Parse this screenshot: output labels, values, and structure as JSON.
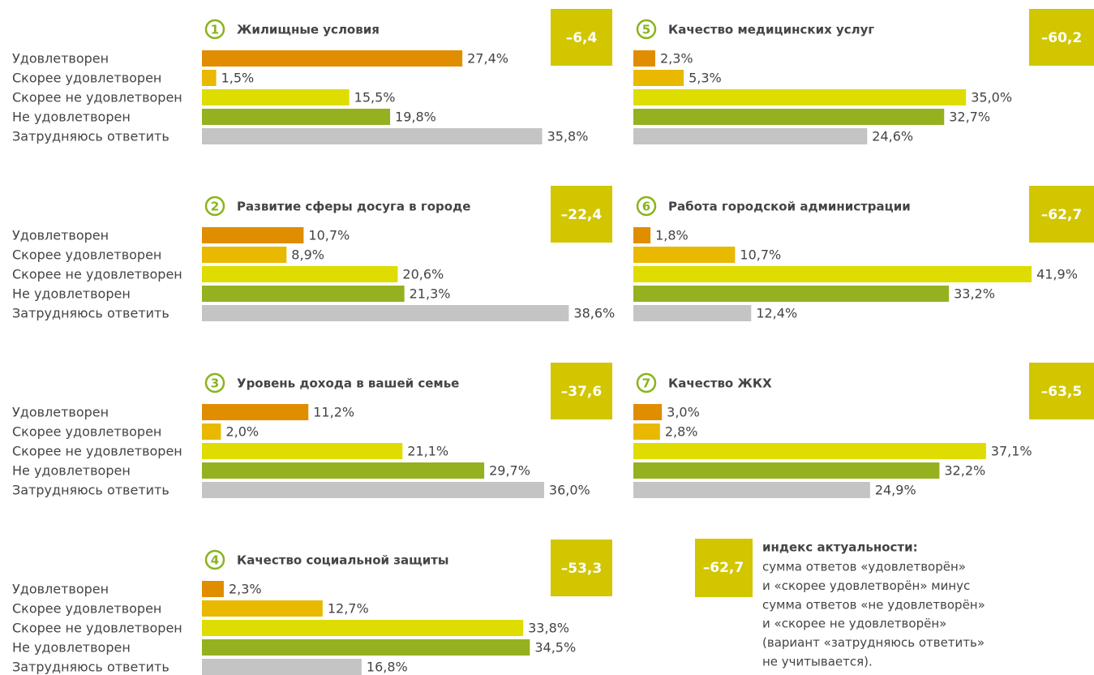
{
  "chart_data": [
    {
      "type": "bar",
      "number": "1",
      "title": "Жилищные условия",
      "index": -6.4,
      "index_label": "–6,4",
      "categories": [
        "Удовлетворен",
        "Скорее удовлетворен",
        "Скорее не удовлетворен",
        "Не удовлетворен",
        "Затрудняюсь ответить"
      ],
      "values": [
        27.4,
        1.5,
        15.5,
        19.8,
        35.8
      ],
      "value_labels": [
        "27,4%",
        "1,5%",
        "15,5%",
        "19,8%",
        "35,8%"
      ],
      "colors": [
        "#e08e00",
        "#e8b900",
        "#dedc00",
        "#95b11f",
        "#c4c4c4"
      ]
    },
    {
      "type": "bar",
      "number": "2",
      "title": "Развитие сферы досуга в городе",
      "index": -22.4,
      "index_label": "–22,4",
      "categories": [
        "Удовлетворен",
        "Скорее удовлетворен",
        "Скорее не удовлетворен",
        "Не удовлетворен",
        "Затрудняюсь ответить"
      ],
      "values": [
        10.7,
        8.9,
        20.6,
        21.3,
        38.6
      ],
      "value_labels": [
        "10,7%",
        "8,9%",
        "20,6%",
        "21,3%",
        "38,6%"
      ],
      "colors": [
        "#e08e00",
        "#e8b900",
        "#dedc00",
        "#95b11f",
        "#c4c4c4"
      ]
    },
    {
      "type": "bar",
      "number": "3",
      "title": "Уровень дохода в вашей семье",
      "index": -37.6,
      "index_label": "–37,6",
      "categories": [
        "Удовлетворен",
        "Скорее удовлетворен",
        "Скорее не удовлетворен",
        "Не удовлетворен",
        "Затрудняюсь ответить"
      ],
      "values": [
        11.2,
        2.0,
        21.1,
        29.7,
        36.0
      ],
      "value_labels": [
        "11,2%",
        "2,0%",
        "21,1%",
        "29,7%",
        "36,0%"
      ],
      "colors": [
        "#e08e00",
        "#e8b900",
        "#dedc00",
        "#95b11f",
        "#c4c4c4"
      ]
    },
    {
      "type": "bar",
      "number": "4",
      "title": "Качество социальной защиты",
      "index": -53.3,
      "index_label": "–53,3",
      "categories": [
        "Удовлетворен",
        "Скорее удовлетворен",
        "Скорее не удовлетворен",
        "Не удовлетворен",
        "Затрудняюсь ответить"
      ],
      "values": [
        2.3,
        12.7,
        33.8,
        34.5,
        16.8
      ],
      "value_labels": [
        "2,3%",
        "12,7%",
        "33,8%",
        "34,5%",
        "16,8%"
      ],
      "colors": [
        "#e08e00",
        "#e8b900",
        "#dedc00",
        "#95b11f",
        "#c4c4c4"
      ]
    },
    {
      "type": "bar",
      "number": "5",
      "title": "Качество медицинских услуг",
      "index": -60.2,
      "index_label": "–60,2",
      "values": [
        2.3,
        5.3,
        35.0,
        32.7,
        24.6
      ],
      "value_labels": [
        "2,3%",
        "5,3%",
        "35,0%",
        "32,7%",
        "24,6%"
      ],
      "colors": [
        "#e08e00",
        "#e8b900",
        "#dedc00",
        "#95b11f",
        "#c4c4c4"
      ]
    },
    {
      "type": "bar",
      "number": "6",
      "title": "Работа городской администрации",
      "index": -62.7,
      "index_label": "–62,7",
      "values": [
        1.8,
        10.7,
        41.9,
        33.2,
        12.4
      ],
      "value_labels": [
        "1,8%",
        "10,7%",
        "41,9%",
        "33,2%",
        "12,4%"
      ],
      "colors": [
        "#e08e00",
        "#e8b900",
        "#dedc00",
        "#95b11f",
        "#c4c4c4"
      ]
    },
    {
      "type": "bar",
      "number": "7",
      "title": "Качество ЖКХ",
      "index": -63.5,
      "index_label": "–63,5",
      "values": [
        3.0,
        2.8,
        37.1,
        32.2,
        24.9
      ],
      "value_labels": [
        "3,0%",
        "2,8%",
        "37,1%",
        "32,2%",
        "24,9%"
      ],
      "colors": [
        "#e08e00",
        "#e8b900",
        "#dedc00",
        "#95b11f",
        "#c4c4c4"
      ]
    }
  ],
  "legend": {
    "index_label": "–62,7",
    "title": "индекс актуальности:",
    "lines": [
      "сумма ответов «удовлетворён»",
      "и «скорее удовлетворён» минус",
      "сумма ответов «не удовлетворён»",
      "и «скорее не удовлетворён»",
      "(вариант «затрудняюсь ответить»",
      "не учитывается)."
    ]
  }
}
